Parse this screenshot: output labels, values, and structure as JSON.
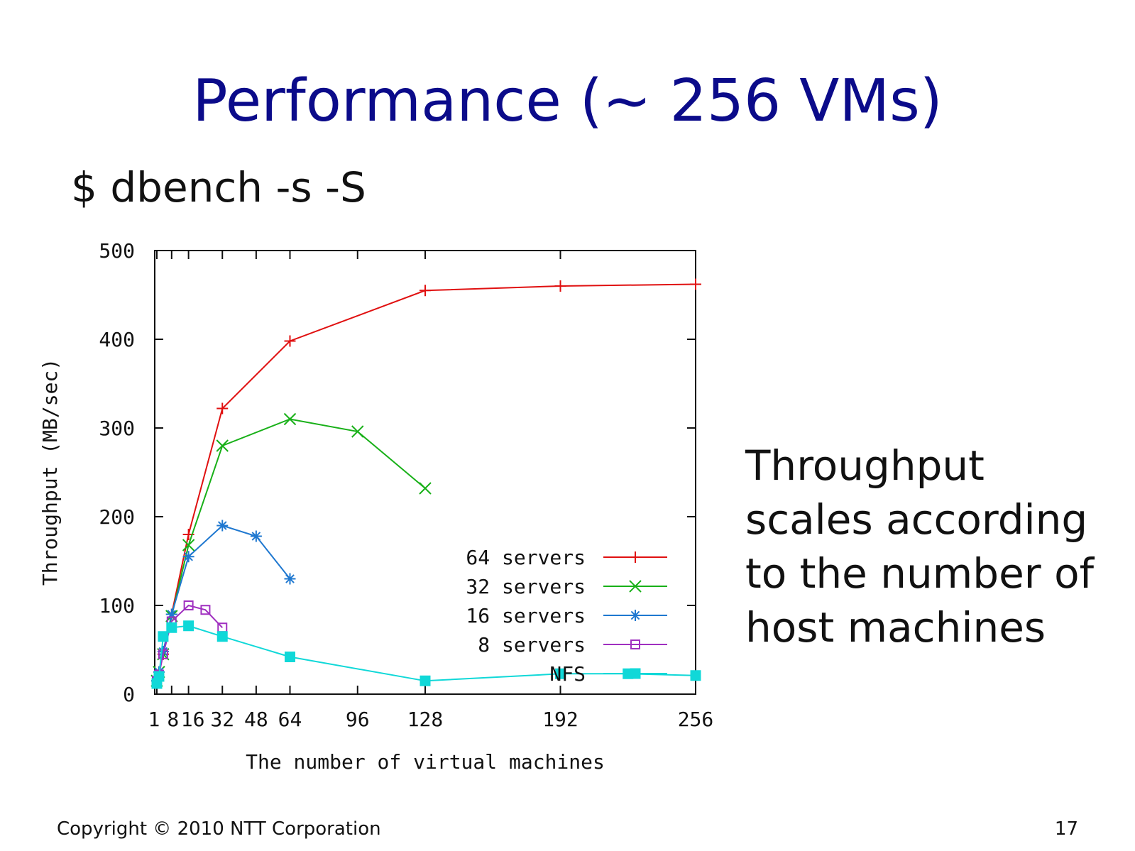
{
  "slide": {
    "title": "Performance (~ 256 VMs)",
    "command": "$ dbench -s -S",
    "side_text": [
      "Throughput",
      "scales according",
      "to the number of",
      "host machines"
    ],
    "copyright": "Copyright © 2010 NTT Corporation",
    "page_number": "17"
  },
  "chart_data": {
    "type": "line",
    "title": "",
    "xlabel": "The number of virtual machines",
    "ylabel": "Throughput (MB/sec)",
    "xlim": [
      0,
      256
    ],
    "ylim": [
      0,
      500
    ],
    "x_ticks": [
      1,
      8,
      16,
      32,
      48,
      64,
      96,
      128,
      192,
      256
    ],
    "x_tick_labels": [
      "1",
      "8",
      "16",
      "32",
      "48",
      "64",
      "96",
      "128",
      "192",
      "256"
    ],
    "y_ticks": [
      0,
      100,
      200,
      300,
      400,
      500
    ],
    "y_tick_labels": [
      "0",
      "100",
      "200",
      "300",
      "400",
      "500"
    ],
    "grid": false,
    "legend_position": "bottom-right",
    "series": [
      {
        "name": "64 servers",
        "color": "#e01010",
        "marker": "plus",
        "points": [
          [
            1,
            15
          ],
          [
            2,
            25
          ],
          [
            4,
            45
          ],
          [
            8,
            90
          ],
          [
            16,
            180
          ],
          [
            32,
            322
          ],
          [
            64,
            398
          ],
          [
            128,
            455
          ],
          [
            192,
            460
          ],
          [
            256,
            462
          ]
        ]
      },
      {
        "name": "32 servers",
        "color": "#18b018",
        "marker": "cross",
        "points": [
          [
            1,
            15
          ],
          [
            2,
            25
          ],
          [
            4,
            45
          ],
          [
            8,
            88
          ],
          [
            16,
            168
          ],
          [
            32,
            280
          ],
          [
            64,
            310
          ],
          [
            96,
            296
          ],
          [
            128,
            232
          ]
        ]
      },
      {
        "name": "16 servers",
        "color": "#1f78d0",
        "marker": "star",
        "points": [
          [
            1,
            15
          ],
          [
            2,
            25
          ],
          [
            4,
            48
          ],
          [
            8,
            90
          ],
          [
            16,
            155
          ],
          [
            32,
            190
          ],
          [
            48,
            178
          ],
          [
            64,
            130
          ]
        ]
      },
      {
        "name": "8 servers",
        "color": "#a030c0",
        "marker": "square-open",
        "points": [
          [
            1,
            15
          ],
          [
            2,
            22
          ],
          [
            4,
            45
          ],
          [
            8,
            82
          ],
          [
            16,
            100
          ],
          [
            24,
            95
          ],
          [
            32,
            75
          ]
        ]
      },
      {
        "name": "NFS",
        "color": "#10d8d8",
        "marker": "square-filled",
        "points": [
          [
            1,
            12
          ],
          [
            2,
            20
          ],
          [
            4,
            65
          ],
          [
            8,
            75
          ],
          [
            16,
            77
          ],
          [
            32,
            65
          ],
          [
            64,
            42
          ],
          [
            128,
            15
          ],
          [
            192,
            23
          ],
          [
            224,
            23
          ],
          [
            256,
            21
          ]
        ]
      }
    ]
  }
}
